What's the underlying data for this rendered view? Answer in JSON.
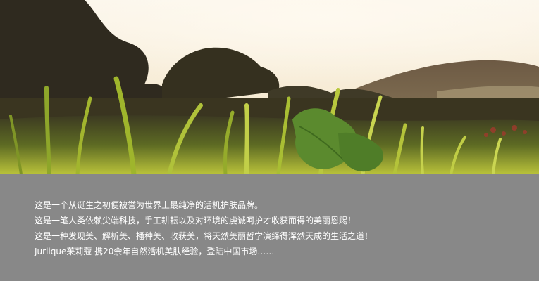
{
  "hero": {
    "image_icon": "meadow-grass-sunset-photo"
  },
  "caption": {
    "lines": [
      "这是一个从诞生之初便被誉为世界上最纯净的活机护肤品牌。",
      "这是一笔人类依赖尖端科技，手工耕耘以及对环境的虔诚呵护才收获而得的美丽恩赐！",
      "这是一种发现美、解析美、播种美、收获美，将天然美丽哲学演绎得浑然天成的生活之道！",
      "Jurlique茱莉蔻 携20余年自然活机美肤经验，登陆中国市场……"
    ]
  },
  "colors": {
    "caption_bg": "#888888",
    "caption_text": "#ffffff"
  }
}
